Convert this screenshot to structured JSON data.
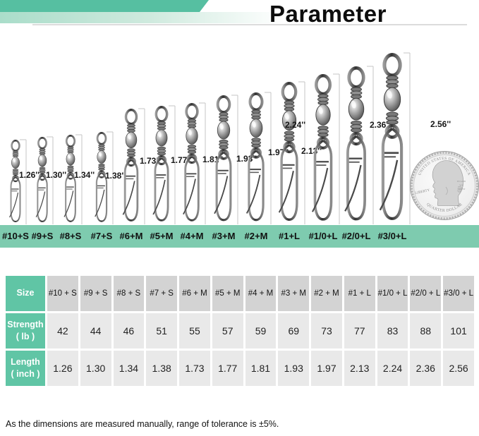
{
  "title": "Parameter",
  "figure": {
    "items": [
      {
        "size": "#10+S",
        "length_label": "1.26''"
      },
      {
        "size": "#9+S",
        "length_label": "1.30''"
      },
      {
        "size": "#8+S",
        "length_label": "1.34''"
      },
      {
        "size": "#7+S",
        "length_label": "1.38''"
      },
      {
        "size": "#6+M",
        "length_label": "1.73''"
      },
      {
        "size": "#5+M",
        "length_label": "1.77''"
      },
      {
        "size": "#4+M",
        "length_label": "1.81''"
      },
      {
        "size": "#3+M",
        "length_label": "1.93''"
      },
      {
        "size": "#2+M",
        "length_label": "1.97''"
      },
      {
        "size": "#1+L",
        "length_label": "2.13''"
      },
      {
        "size": "#1/0+L",
        "length_label": "2.24''"
      },
      {
        "size": "#2/0+L",
        "length_label": "2.36''"
      },
      {
        "size": "#3/0+L",
        "length_label": "2.56''"
      }
    ],
    "coin": {
      "top_text": "UNITED STATES OF AMERICA",
      "left_text": "LIBERTY",
      "motto_lines": [
        "IN GOD",
        "WE",
        "TRUST"
      ],
      "bottom_text": "QUARTER DOLLAR"
    }
  },
  "table": {
    "rows": [
      {
        "header_line1": "Size",
        "header_line2": "",
        "cells": [
          "#10 + S",
          "#9 + S",
          "#8 + S",
          "#7 + S",
          "#6 + M",
          "#5 + M",
          "#4 + M",
          "#3 + M",
          "#2 + M",
          "#1 + L",
          "#1/0 + L",
          "#2/0 + L",
          "#3/0 + L"
        ]
      },
      {
        "header_line1": "Strength",
        "header_line2": "( lb )",
        "cells": [
          "42",
          "44",
          "46",
          "51",
          "55",
          "57",
          "59",
          "69",
          "73",
          "77",
          "83",
          "88",
          "101"
        ]
      },
      {
        "header_line1": "Length",
        "header_line2": "( inch )",
        "cells": [
          "1.26",
          "1.30",
          "1.34",
          "1.38",
          "1.73",
          "1.77",
          "1.81",
          "1.93",
          "1.97",
          "2.13",
          "2.24",
          "2.36",
          "2.56"
        ]
      }
    ]
  },
  "note": "As the dimensions are measured manually, range of tolerance is ±5%.",
  "colors": {
    "banner_teal": "#56bfa1",
    "band_teal": "#7ecbaf",
    "header_teal": "#60c5a5",
    "header_gray": "#d3d3d3",
    "cell_gray": "#e9e9e9"
  }
}
